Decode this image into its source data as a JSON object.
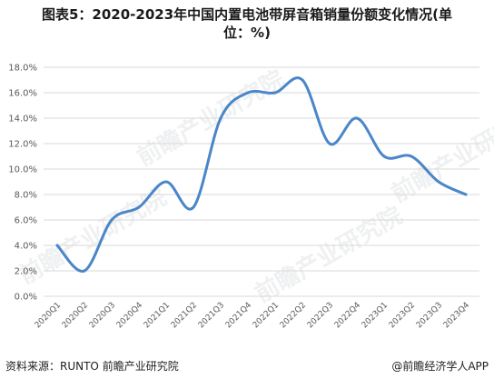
{
  "title_line1": "图表5：2020-2023年中国内置电池带屏音箱销量份额变化情况(单",
  "title_line2": "位：%)",
  "footer": {
    "source": "资料来源：RUNTO 前瞻产业研究院",
    "brand": "@前瞻经济学人APP"
  },
  "watermark_text": "前瞻产业研究院",
  "colors": {
    "line": "#4a86c8",
    "grid": "#d9d9d9",
    "axis_text": "#595959"
  },
  "chart_data": {
    "type": "line",
    "title": "图表5：2020-2023年中国内置电池带屏音箱销量份额变化情况(单位：%)",
    "categories": [
      "2020Q1",
      "2020Q2",
      "2020Q3",
      "2020Q4",
      "2021Q1",
      "2021Q2",
      "2021Q3",
      "2021Q4",
      "2022Q1",
      "2022Q2",
      "2022Q3",
      "2022Q4",
      "2023Q1",
      "2023Q2",
      "2023Q3",
      "2023Q4"
    ],
    "values": [
      4.0,
      2.0,
      6.0,
      7.0,
      9.0,
      7.0,
      14.0,
      16.0,
      16.0,
      17.0,
      12.0,
      14.0,
      11.0,
      11.0,
      9.0,
      8.0
    ],
    "ylim": [
      0,
      18
    ],
    "yticks": [
      "0.0%",
      "2.0%",
      "4.0%",
      "6.0%",
      "8.0%",
      "10.0%",
      "12.0%",
      "14.0%",
      "16.0%",
      "18.0%"
    ],
    "ytick_values": [
      0,
      2,
      4,
      6,
      8,
      10,
      12,
      14,
      16,
      18
    ],
    "grid": true,
    "legend": "none",
    "smooth": true
  }
}
